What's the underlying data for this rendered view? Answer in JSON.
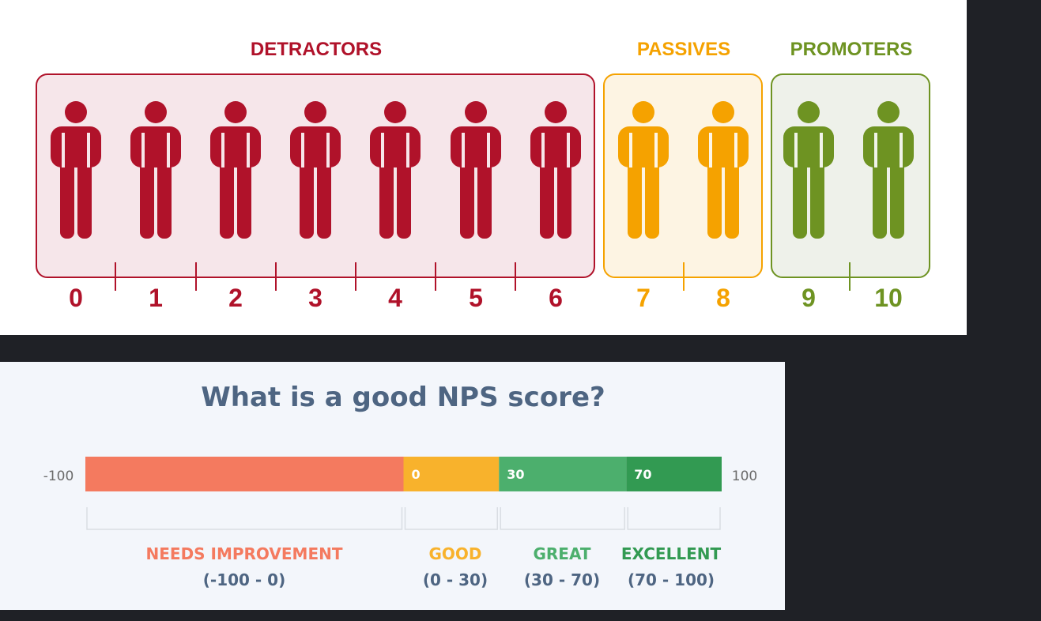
{
  "scale": {
    "groups": [
      {
        "label": "DETRACTORS",
        "color": "#b0122a",
        "bg": "#f6e6ea",
        "scores": [
          "0",
          "1",
          "2",
          "3",
          "4",
          "5",
          "6"
        ]
      },
      {
        "label": "PASSIVES",
        "color": "#f5a200",
        "bg": "#fdf4e3",
        "scores": [
          "7",
          "8"
        ]
      },
      {
        "label": "PROMOTERS",
        "color": "#6e9322",
        "bg": "#eef1ea",
        "scores": [
          "9",
          "10"
        ]
      }
    ]
  },
  "ranges": {
    "title": "What is a good NPS score?",
    "min_label": "-100",
    "max_label": "100",
    "segments": [
      {
        "start": -100,
        "end": 0,
        "start_label": "",
        "color": "#f47a5f"
      },
      {
        "start": 0,
        "end": 30,
        "start_label": "0",
        "color": "#f8b22c"
      },
      {
        "start": 30,
        "end": 70,
        "start_label": "30",
        "color": "#4caf6d"
      },
      {
        "start": 70,
        "end": 100,
        "start_label": "70",
        "color": "#329a52"
      }
    ],
    "categories": [
      {
        "name": "NEEDS IMPROVEMENT",
        "range": "(-100 - 0)",
        "color": "#f47a5f"
      },
      {
        "name": "GOOD",
        "range": "(0 - 30)",
        "color": "#f8b22c"
      },
      {
        "name": "GREAT",
        "range": "(30 - 70)",
        "color": "#4caf6d"
      },
      {
        "name": "EXCELLENT",
        "range": "(70 - 100)",
        "color": "#329a52"
      }
    ]
  }
}
